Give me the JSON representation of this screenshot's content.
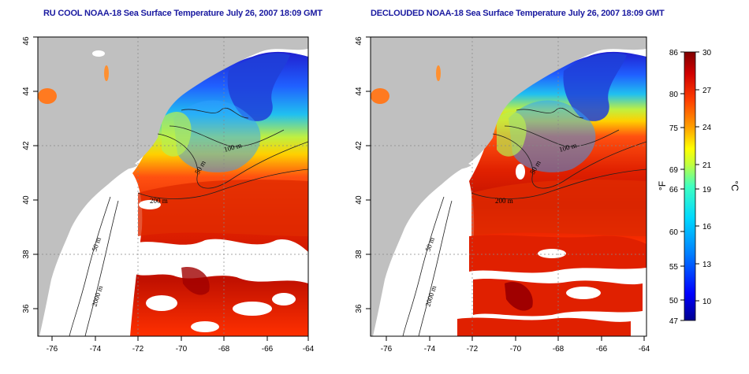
{
  "panels": [
    {
      "title": "RU COOL NOAA-18 Sea Surface Temperature July 26, 2007 18:09 GMT",
      "isobaths": [
        "50 m",
        "100 m",
        "200 m",
        "50 m",
        "2000 m"
      ]
    },
    {
      "title": "DECLOUDED NOAA-18 Sea Surface Temperature July 26, 2007 18:09 GMT",
      "isobaths": [
        "50 m",
        "100 m",
        "200 m",
        "50 m",
        "2000 m"
      ]
    }
  ],
  "axes": {
    "lat_ticks": [
      "46",
      "44",
      "42",
      "40",
      "38",
      "36"
    ],
    "lon_ticks": [
      "-76",
      "-74",
      "-72",
      "-70",
      "-68",
      "-66",
      "-64"
    ]
  },
  "colorbar": {
    "fahrenheit_ticks": [
      "86",
      "80",
      "75",
      "69",
      "66",
      "60",
      "55",
      "50",
      "47"
    ],
    "celsius_ticks": [
      "30",
      "27",
      "24",
      "21",
      "19",
      "16",
      "13",
      "10"
    ],
    "fahrenheit_label": "°F",
    "celsius_label": "°C",
    "colors": [
      "#00008f",
      "#0000ff",
      "#0080ff",
      "#00d0ff",
      "#40ffc0",
      "#c0ff40",
      "#ffff00",
      "#ffa000",
      "#ff4000",
      "#d00000",
      "#800000"
    ]
  },
  "colors": {
    "land": "#c0c0c0",
    "cloud": "#ffffff",
    "title": "#1a1aa0"
  }
}
